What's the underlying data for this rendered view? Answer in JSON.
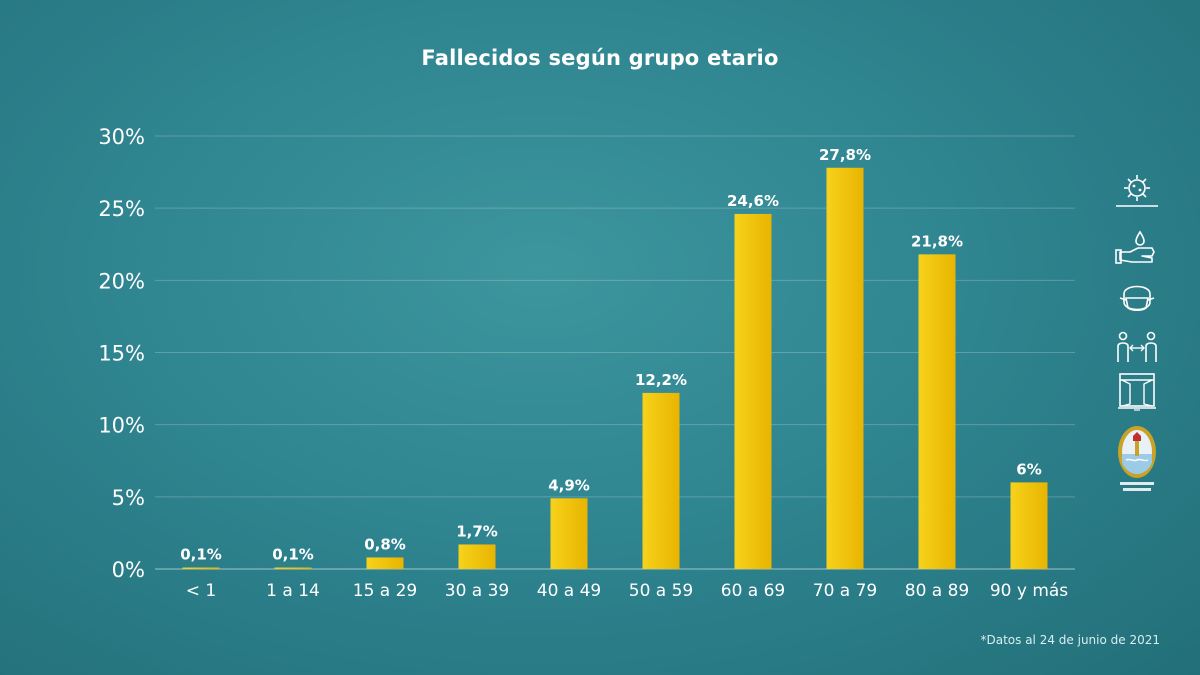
{
  "chart_data": {
    "type": "bar",
    "title": "Fallecidos según grupo etario",
    "categories": [
      "< 1",
      "1 a 14",
      "15 a 29",
      "30 a 39",
      "40 a 49",
      "50 a 59",
      "60 a 69",
      "70 a 79",
      "80 a 89",
      "90 y más"
    ],
    "values": [
      0.1,
      0.1,
      0.8,
      1.7,
      4.9,
      12.2,
      24.6,
      27.8,
      21.8,
      6
    ],
    "data_labels": [
      "0,1%",
      "0,1%",
      "0,8%",
      "1,7%",
      "4,9%",
      "12,2%",
      "24,6%",
      "27,8%",
      "21,8%",
      "6%"
    ],
    "y_ticks": [
      0,
      5,
      10,
      15,
      20,
      25,
      30
    ],
    "y_tick_labels": [
      "0%",
      "5%",
      "10%",
      "15%",
      "20%",
      "25%",
      "30%"
    ],
    "ylim": [
      0,
      30
    ],
    "xlabel": "",
    "ylabel": "",
    "grid": true,
    "bar_color": "#f2c200",
    "label_color": "#ffffff"
  },
  "footnote": "*Datos al 24 de junio de 2021",
  "side_icons": [
    "virus-icon",
    "hand-washing-icon",
    "face-mask-icon",
    "social-distance-icon",
    "window-ventilation-icon",
    "province-seal-icon"
  ],
  "colors": {
    "background": "#2f8590",
    "bar": "#f2c200",
    "text": "#ffffff"
  }
}
